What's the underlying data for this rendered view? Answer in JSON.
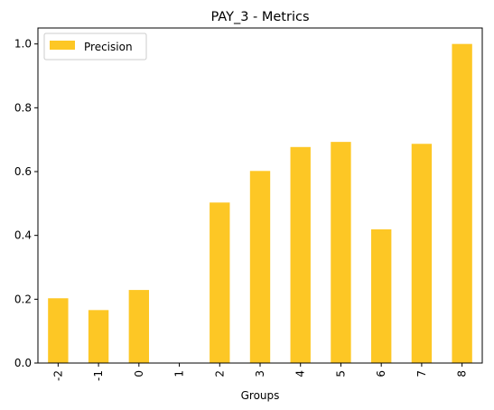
{
  "chart_data": {
    "type": "bar",
    "title": "PAY_3 - Metrics",
    "xlabel": "Groups",
    "ylabel": "",
    "categories": [
      "-2",
      "-1",
      "0",
      "1",
      "2",
      "3",
      "4",
      "5",
      "6",
      "7",
      "8"
    ],
    "series": [
      {
        "name": "Precision",
        "color": "#fdc725",
        "values": [
          0.203,
          0.166,
          0.229,
          0.0,
          0.503,
          0.602,
          0.677,
          0.693,
          0.419,
          0.687,
          1.0
        ]
      }
    ],
    "ylim": [
      0,
      1.05
    ],
    "yticks": [
      "0.0",
      "0.2",
      "0.4",
      "0.6",
      "0.8",
      "1.0"
    ],
    "ytick_values": [
      0.0,
      0.2,
      0.4,
      0.6,
      0.8,
      1.0
    ],
    "legend_position": "top-left",
    "grid": false
  }
}
